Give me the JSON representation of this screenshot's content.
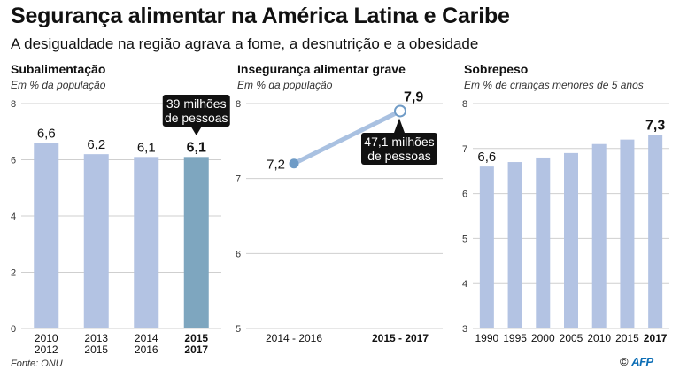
{
  "header": {
    "title": "Segurança alimentar na América Latina e Caribe",
    "subtitle": "A desigualdade na região agrava a fome, a desnutrição e a obesidade"
  },
  "footer": {
    "source": "Fonte: ONU",
    "credit_symbol": "©",
    "credit_logo": "AFP"
  },
  "colors": {
    "bar": "#b3c3e3",
    "bar_highlight": "#7ea6bf",
    "line": "#a9c1e1",
    "grid": "#cfcfcf",
    "callout": "#111111"
  },
  "chart_data": [
    {
      "type": "bar",
      "title": "Subalimentação",
      "ylabel": "Em % da população",
      "categories": [
        [
          "2010",
          "2012"
        ],
        [
          "2013",
          "2015"
        ],
        [
          "2014",
          "2016"
        ],
        [
          "2015",
          "2017"
        ]
      ],
      "values": [
        6.6,
        6.2,
        6.1,
        6.1
      ],
      "value_labels": [
        "6,6",
        "6,2",
        "6,1",
        "6,1"
      ],
      "highlight_index": 3,
      "ylim": [
        0,
        8
      ],
      "yticks": [
        0,
        2,
        4,
        6,
        8
      ],
      "ytick_labels": [
        "0",
        "2",
        "4",
        "6",
        "8"
      ],
      "grid": true,
      "annotation": {
        "lines": [
          "39 milhões",
          "de pessoas"
        ],
        "index": 3
      }
    },
    {
      "type": "line",
      "title": "Insegurança alimentar grave",
      "ylabel": "Em % da população",
      "categories": [
        "2014 - 2016",
        "2015 - 2017"
      ],
      "values": [
        7.2,
        7.9
      ],
      "value_labels": [
        "7,2",
        "7,9"
      ],
      "highlight_index": 1,
      "ylim": [
        5,
        8
      ],
      "yticks": [
        5,
        6,
        7,
        8
      ],
      "ytick_labels": [
        "5",
        "6",
        "7",
        "8"
      ],
      "grid": true,
      "annotation": {
        "lines": [
          "47,1 milhões",
          "de pessoas"
        ],
        "index": 1
      }
    },
    {
      "type": "bar",
      "title": "Sobrepeso",
      "ylabel": "Em % de crianças menores de 5 anos",
      "categories": [
        "1990",
        "1995",
        "2000",
        "2005",
        "2010",
        "2015",
        "2017"
      ],
      "values": [
        6.6,
        6.7,
        6.8,
        6.9,
        7.1,
        7.2,
        7.3
      ],
      "value_labels": [
        "6,6",
        "",
        "",
        "",
        "",
        "",
        "7,3"
      ],
      "highlight_index": 6,
      "ylim": [
        3,
        8
      ],
      "yticks": [
        3,
        4,
        5,
        6,
        7,
        8
      ],
      "ytick_labels": [
        "3",
        "4",
        "5",
        "6",
        "7",
        "8"
      ],
      "grid": true
    }
  ]
}
